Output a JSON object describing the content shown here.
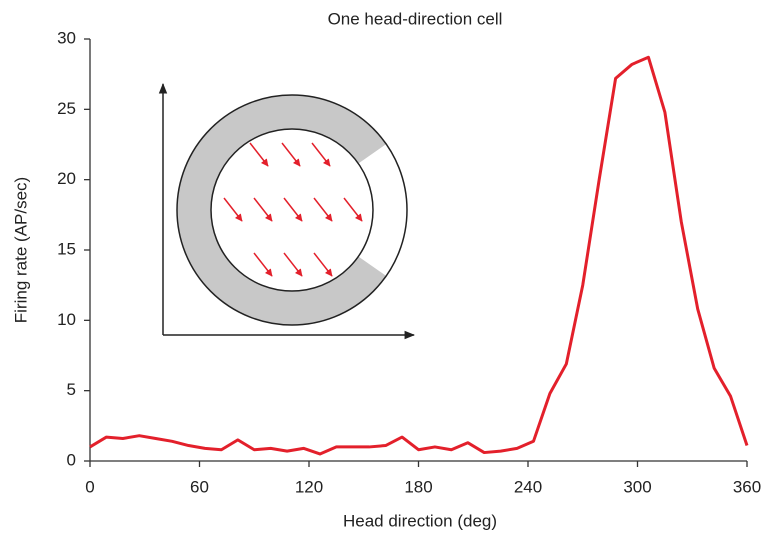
{
  "chart_data": {
    "type": "line",
    "title": "One head-direction cell",
    "x_label": "Head direction (deg)",
    "y_label": "Firing rate (AP/sec)",
    "x": [
      0,
      9,
      18,
      27,
      36,
      45,
      54,
      63,
      72,
      81,
      90,
      99,
      108,
      117,
      126,
      135,
      144,
      153,
      162,
      171,
      180,
      189,
      198,
      207,
      216,
      225,
      234,
      243,
      252,
      261,
      270,
      279,
      288,
      297,
      306,
      315,
      324,
      333,
      342,
      351,
      360
    ],
    "values": [
      1.0,
      1.7,
      1.6,
      1.8,
      1.6,
      1.4,
      1.1,
      0.9,
      0.8,
      1.5,
      0.8,
      0.9,
      0.7,
      0.9,
      0.5,
      1.0,
      1.0,
      1.0,
      1.1,
      1.7,
      0.8,
      1.0,
      0.8,
      1.3,
      0.6,
      0.7,
      0.9,
      1.4,
      4.8,
      6.9,
      12.5,
      20,
      27.2,
      28.2,
      28.7,
      24.8,
      17,
      10.8,
      6.6,
      4.6,
      1.1
    ],
    "color": "#e3202b",
    "xlim": [
      0,
      360
    ],
    "xticks": [
      0,
      60,
      120,
      180,
      240,
      300,
      360
    ],
    "ylim": [
      0,
      30
    ],
    "yticks": [
      0,
      5,
      10,
      15,
      20,
      25,
      30
    ],
    "grid": false
  }
}
